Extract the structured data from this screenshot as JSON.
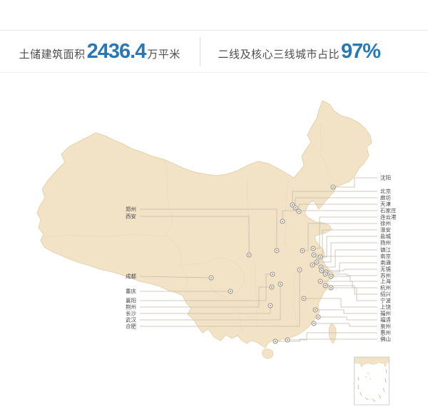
{
  "header": {
    "stat1": {
      "label": "土储建筑面积",
      "value": "2436.4",
      "unit": "万平米"
    },
    "stat2": {
      "label": "二线及核心三线城市占比",
      "value": "97%"
    }
  },
  "colors": {
    "accent_blue": "#2878b8",
    "map_fill": "#f2e3c6",
    "map_stroke": "#e5d3ae",
    "province_stroke": "#e8dabc",
    "leader_line": "#c3bbad",
    "marker": "#958c7c",
    "city_label": "#4a4a4a",
    "inset_border": "#cfcfcf",
    "inset_dash": "#cdbd97"
  },
  "map": {
    "cities_right": [
      {
        "name": "沈阳",
        "label": [
          533,
          249
        ],
        "bend": 497,
        "marker": [
          467,
          262
        ]
      },
      {
        "name": "北京",
        "label": [
          533,
          268
        ],
        "bend": 410,
        "marker": [
          410,
          287
        ]
      },
      {
        "name": "廊坊",
        "label": [
          533,
          277
        ],
        "bend": 414,
        "marker": [
          414,
          291
        ]
      },
      {
        "name": "天津",
        "label": [
          533,
          286
        ],
        "bend": 419,
        "marker": [
          419,
          296
        ]
      },
      {
        "name": "石家庄",
        "label": [
          533,
          295
        ],
        "bend": 396,
        "marker": [
          396,
          310
        ]
      },
      {
        "name": "连云港",
        "label": [
          533,
          304
        ],
        "bend": 448,
        "marker": [
          439,
          348
        ]
      },
      {
        "name": "徐州",
        "label": [
          533,
          313
        ],
        "bend": 432,
        "marker": [
          424,
          351
        ]
      },
      {
        "name": "淮安",
        "label": [
          533,
          322
        ],
        "bend": 452,
        "marker": [
          440,
          357
        ]
      },
      {
        "name": "盐城",
        "label": [
          533,
          331
        ],
        "bend": 458,
        "marker": [
          449,
          360
        ]
      },
      {
        "name": "扬州",
        "label": [
          533,
          340
        ],
        "bend": 464,
        "marker": [
          444,
          367
        ]
      },
      {
        "name": "镇江",
        "label": [
          533,
          350
        ],
        "bend": 470,
        "marker": [
          450,
          374
        ]
      },
      {
        "name": "南京",
        "label": [
          533,
          359
        ],
        "bend": 444,
        "marker": [
          438,
          371
        ]
      },
      {
        "name": "南通",
        "label": [
          533,
          368
        ],
        "bend": 476,
        "marker": [
          457,
          381
        ]
      },
      {
        "name": "无锡",
        "label": [
          533,
          377
        ],
        "bend": 482,
        "marker": [
          451,
          379
        ]
      },
      {
        "name": "苏州",
        "label": [
          533,
          386
        ],
        "bend": 487,
        "marker": [
          456,
          384
        ]
      },
      {
        "name": "上海",
        "label": [
          533,
          394
        ],
        "bend": 491,
        "marker": [
          464,
          387
        ]
      },
      {
        "name": "杭州",
        "label": [
          533,
          403
        ],
        "bend": 494,
        "marker": [
          449,
          394
        ]
      },
      {
        "name": "绍兴",
        "label": [
          533,
          412
        ],
        "bend": 497,
        "marker": [
          456,
          400
        ]
      },
      {
        "name": "宁波",
        "label": [
          533,
          421
        ],
        "bend": 500,
        "marker": [
          464,
          403
        ]
      },
      {
        "name": "上饶",
        "label": [
          533,
          430
        ],
        "bend": 478,
        "marker": [
          426,
          418
        ]
      },
      {
        "name": "福州",
        "label": [
          533,
          439
        ],
        "bend": 482,
        "marker": [
          442,
          434
        ]
      },
      {
        "name": "福清",
        "label": [
          533,
          448
        ],
        "bend": 486,
        "marker": [
          446,
          444
        ]
      },
      {
        "name": "泉州",
        "label": [
          533,
          457
        ],
        "bend": 490,
        "marker": [
          440,
          453
        ]
      },
      {
        "name": "惠州",
        "label": [
          533,
          466
        ],
        "bend": 430,
        "marker": [
          403,
          476
        ]
      },
      {
        "name": "佛山",
        "label": [
          533,
          475
        ],
        "bend": 420,
        "marker": [
          386,
          478
        ]
      }
    ],
    "cities_left": [
      {
        "name": "郑州",
        "label": [
          191,
          293
        ],
        "bend": 388,
        "marker": [
          388,
          351
        ]
      },
      {
        "name": "西安",
        "label": [
          191,
          303
        ],
        "bend": 349,
        "marker": [
          349,
          357
        ]
      },
      {
        "name": "成都",
        "label": [
          191,
          387
        ],
        "bend": 296,
        "marker": [
          296,
          389
        ]
      },
      {
        "name": "重庆",
        "label": [
          191,
          408
        ],
        "bend": 323,
        "marker": [
          323,
          408
        ]
      },
      {
        "name": "襄阳",
        "label": [
          191,
          421
        ],
        "bend": 373,
        "marker": [
          382,
          384
        ]
      },
      {
        "name": "荆州",
        "label": [
          191,
          430
        ],
        "bend": 363,
        "marker": [
          381,
          402
        ]
      },
      {
        "name": "长沙",
        "label": [
          191,
          439
        ],
        "bend": 379,
        "marker": [
          379,
          428
        ]
      },
      {
        "name": "武汉",
        "label": [
          191,
          448
        ],
        "bend": 393,
        "marker": [
          393,
          398
        ]
      },
      {
        "name": "合肥",
        "label": [
          191,
          457
        ],
        "bend": 420,
        "marker": [
          420,
          378
        ]
      }
    ]
  }
}
